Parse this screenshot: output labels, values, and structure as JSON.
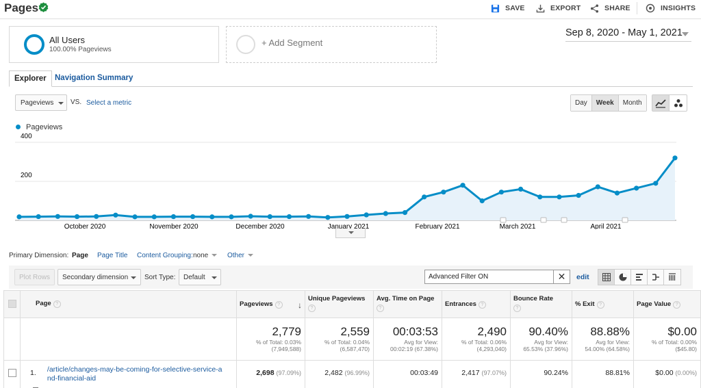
{
  "header": {
    "title": "Pages",
    "save": "SAVE",
    "export": "EXPORT",
    "share": "SHARE",
    "insights": "INSIGHTS"
  },
  "segments": {
    "all_users": {
      "name": "All Users",
      "sub": "100.00% Pageviews"
    },
    "add_segment": "+ Add Segment"
  },
  "date_range": "Sep 8, 2020 - May 1, 2021",
  "tabs": {
    "explorer": "Explorer",
    "navigation_summary": "Navigation Summary"
  },
  "metric": {
    "selected": "Pageviews",
    "vs": "VS.",
    "select_metric": "Select a metric"
  },
  "granularity": {
    "day": "Day",
    "week": "Week",
    "month": "Month",
    "active": "Week"
  },
  "legend": "Pageviews",
  "colors": {
    "series": "#058dc7",
    "area": "#e7f2fa",
    "link": "#1a5a9e"
  },
  "chart_data": {
    "type": "area",
    "series": [
      {
        "name": "Pageviews",
        "values": [
          18,
          19,
          20,
          19,
          20,
          27,
          18,
          18,
          19,
          19,
          18,
          18,
          21,
          19,
          19,
          20,
          15,
          20,
          28,
          35,
          40,
          120,
          145,
          180,
          100,
          145,
          160,
          120,
          120,
          128,
          172,
          140,
          165,
          190,
          320
        ]
      }
    ],
    "x_ticks": [
      "October 2020",
      "November 2020",
      "December 2020",
      "January 2021",
      "February 2021",
      "March 2021",
      "April 2021"
    ],
    "y_ticks": [
      200,
      400
    ],
    "ylim": [
      0,
      400
    ],
    "grid": true
  },
  "primary_dimension": {
    "label": "Primary Dimension:",
    "page": "Page",
    "page_title": "Page Title",
    "content_grouping": "Content Grouping:",
    "content_grouping_value": "none",
    "other": "Other"
  },
  "toolbar": {
    "plot_rows": "Plot Rows",
    "secondary_dimension": "Secondary dimension",
    "sort_type_label": "Sort Type:",
    "sort_type": "Default",
    "filter": "Advanced Filter ON",
    "edit": "edit"
  },
  "table": {
    "headers": [
      "Page",
      "Pageviews",
      "Unique Pageviews",
      "Avg. Time on Page",
      "Entrances",
      "Bounce Rate",
      "% Exit",
      "Page Value"
    ],
    "totals": [
      {
        "main": "2,779",
        "l1": "% of Total: 0.03%",
        "l2": "(7,949,588)"
      },
      {
        "main": "2,559",
        "l1": "% of Total: 0.04%",
        "l2": "(6,587,470)"
      },
      {
        "main": "00:03:53",
        "l1": "Avg for View:",
        "l2": "00:02:19 (67.38%)"
      },
      {
        "main": "2,490",
        "l1": "% of Total: 0.06%",
        "l2": "(4,293,040)"
      },
      {
        "main": "90.40%",
        "l1": "Avg for View:",
        "l2": "65.53% (37.96%)"
      },
      {
        "main": "88.88%",
        "l1": "Avg for View:",
        "l2": "54.00% (64.58%)"
      },
      {
        "main": "$0.00",
        "l1": "% of Total: 0.00%",
        "l2": "($45.80)"
      }
    ],
    "rows": [
      {
        "index": "1.",
        "page": "/article/changes-may-be-coming-for-selective-service-and-financial-aid",
        "pageviews": "2,698",
        "pageviews_pct": "(97.09%)",
        "unique": "2,482",
        "unique_pct": "(96.99%)",
        "avg_time": "00:03:49",
        "entrances": "2,417",
        "entrances_pct": "(97.07%)",
        "bounce": "90.24%",
        "exit": "88.81%",
        "value": "$0.00",
        "value_pct": "(0.00%)"
      }
    ]
  }
}
